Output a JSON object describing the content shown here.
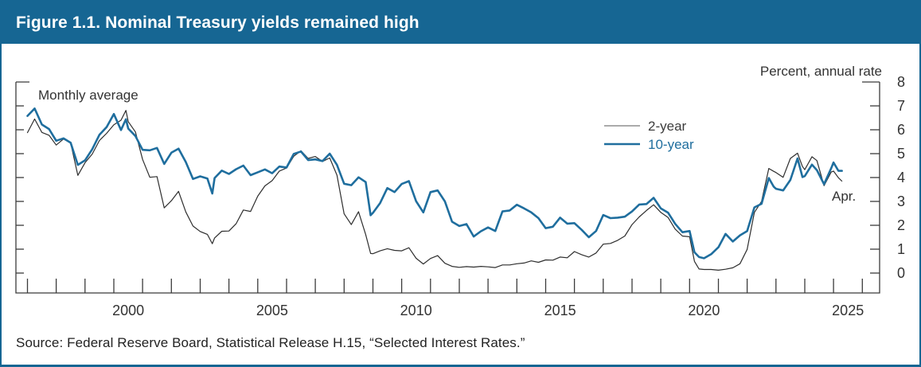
{
  "figure": {
    "title": "Figure 1.1. Nominal Treasury yields remained high",
    "source": "Source: Federal Reserve Board, Statistical Release H.15, “Selected Interest Rates.”"
  },
  "colors": {
    "accent": "#166693",
    "axis": "#3b3b3b",
    "text": "#333333",
    "line_10_year": "#1F6E9E",
    "line_2_year": "#2E2E2E",
    "legend_2_year_swatch": "#8F8F8F",
    "legend_2_year_text": "#3C3C3C"
  },
  "chart_data": {
    "type": "line",
    "title": "Nominal Treasury yields remained high",
    "note": "Monthly average",
    "units_label": "Percent, annual rate",
    "end_label": "Apr.",
    "grid": false,
    "x_axis": {
      "min": 1996.6,
      "max": 2026.6,
      "tick_start": 1997,
      "tick_end": 2026,
      "labels": [
        2000,
        2005,
        2010,
        2015,
        2020,
        2025
      ]
    },
    "y_axis": {
      "min": 0,
      "max": 8,
      "ticks": [
        0,
        1,
        2,
        3,
        4,
        5,
        6,
        7,
        8
      ],
      "side": "right"
    },
    "legend": {
      "position": "upper-right-of-center",
      "items": [
        {
          "label": "2-year",
          "swatch": "#8F8F8F",
          "swatch_width": 1.6,
          "text_color": "#3C3C3C"
        },
        {
          "label": "10-year",
          "swatch": "#1F6E9E",
          "swatch_width": 2.6,
          "text_color": "#1F6E9E"
        }
      ]
    },
    "x": [
      1997.0,
      1997.25,
      1997.5,
      1997.75,
      1998.0,
      1998.25,
      1998.5,
      1998.75,
      1999.0,
      1999.25,
      1999.5,
      1999.75,
      2000.0,
      2000.25,
      2000.42,
      2000.5,
      2000.75,
      2001.0,
      2001.25,
      2001.5,
      2001.75,
      2002.0,
      2002.25,
      2002.5,
      2002.75,
      2003.0,
      2003.25,
      2003.42,
      2003.5,
      2003.75,
      2004.0,
      2004.25,
      2004.5,
      2004.75,
      2005.0,
      2005.25,
      2005.5,
      2005.75,
      2006.0,
      2006.25,
      2006.5,
      2006.75,
      2007.0,
      2007.25,
      2007.5,
      2007.75,
      2008.0,
      2008.25,
      2008.5,
      2008.75,
      2008.92,
      2009.0,
      2009.25,
      2009.5,
      2009.75,
      2010.0,
      2010.25,
      2010.5,
      2010.75,
      2011.0,
      2011.25,
      2011.5,
      2011.75,
      2012.0,
      2012.25,
      2012.5,
      2012.75,
      2013.0,
      2013.25,
      2013.5,
      2013.75,
      2014.0,
      2014.25,
      2014.5,
      2014.75,
      2015.0,
      2015.25,
      2015.5,
      2015.75,
      2016.0,
      2016.25,
      2016.5,
      2016.75,
      2017.0,
      2017.25,
      2017.5,
      2017.75,
      2018.0,
      2018.25,
      2018.5,
      2018.75,
      2019.0,
      2019.25,
      2019.5,
      2019.75,
      2020.0,
      2020.17,
      2020.33,
      2020.5,
      2020.75,
      2021.0,
      2021.25,
      2021.5,
      2021.75,
      2022.0,
      2022.25,
      2022.5,
      2022.75,
      2022.92,
      2023.0,
      2023.25,
      2023.5,
      2023.75,
      2023.92,
      2024.0,
      2024.25,
      2024.42,
      2024.67,
      2024.92,
      2025.0,
      2025.17,
      2025.29
    ],
    "series": [
      {
        "name": "2-year",
        "color": "#2E2E2E",
        "width": 1.2,
        "values": [
          5.88,
          6.45,
          5.89,
          5.77,
          5.36,
          5.61,
          5.46,
          4.09,
          4.62,
          4.98,
          5.55,
          5.85,
          6.21,
          6.4,
          6.81,
          6.34,
          5.91,
          4.76,
          4.01,
          4.04,
          2.73,
          3.03,
          3.42,
          2.56,
          1.97,
          1.74,
          1.62,
          1.23,
          1.47,
          1.75,
          1.76,
          2.07,
          2.64,
          2.58,
          3.22,
          3.65,
          3.87,
          4.27,
          4.4,
          4.89,
          5.12,
          4.8,
          4.88,
          4.67,
          4.82,
          4.1,
          2.48,
          2.03,
          2.57,
          1.61,
          0.82,
          0.81,
          0.93,
          1.02,
          0.95,
          0.93,
          1.06,
          0.62,
          0.38,
          0.61,
          0.73,
          0.41,
          0.28,
          0.24,
          0.27,
          0.25,
          0.28,
          0.26,
          0.23,
          0.34,
          0.34,
          0.39,
          0.42,
          0.51,
          0.45,
          0.55,
          0.54,
          0.67,
          0.64,
          0.9,
          0.77,
          0.67,
          0.84,
          1.21,
          1.24,
          1.37,
          1.55,
          2.03,
          2.35,
          2.62,
          2.86,
          2.54,
          2.33,
          1.84,
          1.55,
          1.52,
          0.49,
          0.17,
          0.15,
          0.15,
          0.12,
          0.16,
          0.22,
          0.39,
          0.99,
          2.54,
          3.0,
          4.38,
          4.26,
          4.21,
          4.01,
          4.8,
          5.02,
          4.46,
          4.33,
          4.87,
          4.71,
          3.66,
          4.23,
          4.27,
          3.99,
          3.85
        ]
      },
      {
        "name": "10-year",
        "color": "#1F6E9E",
        "width": 2.6,
        "values": [
          6.58,
          6.89,
          6.22,
          6.03,
          5.54,
          5.64,
          5.46,
          4.53,
          4.72,
          5.18,
          5.79,
          6.11,
          6.66,
          5.99,
          6.44,
          6.05,
          5.74,
          5.16,
          5.14,
          5.24,
          4.57,
          5.04,
          5.21,
          4.65,
          3.94,
          4.05,
          3.96,
          3.33,
          3.98,
          4.29,
          4.15,
          4.35,
          4.5,
          4.1,
          4.22,
          4.34,
          4.18,
          4.46,
          4.42,
          4.99,
          5.09,
          4.73,
          4.76,
          4.69,
          5.0,
          4.53,
          3.74,
          3.68,
          4.01,
          3.81,
          2.42,
          2.52,
          2.93,
          3.56,
          3.39,
          3.73,
          3.85,
          3.01,
          2.54,
          3.39,
          3.46,
          3.0,
          2.15,
          1.97,
          2.05,
          1.53,
          1.75,
          1.91,
          1.76,
          2.58,
          2.62,
          2.86,
          2.71,
          2.54,
          2.3,
          1.88,
          1.94,
          2.32,
          2.07,
          2.09,
          1.81,
          1.5,
          1.76,
          2.43,
          2.3,
          2.32,
          2.36,
          2.58,
          2.87,
          2.89,
          3.15,
          2.71,
          2.53,
          2.06,
          1.71,
          1.76,
          0.87,
          0.67,
          0.62,
          0.79,
          1.08,
          1.64,
          1.32,
          1.58,
          1.76,
          2.75,
          2.9,
          3.98,
          3.62,
          3.53,
          3.46,
          3.9,
          4.8,
          4.02,
          4.06,
          4.54,
          4.31,
          3.72,
          4.39,
          4.63,
          4.28,
          4.28
        ]
      }
    ]
  }
}
